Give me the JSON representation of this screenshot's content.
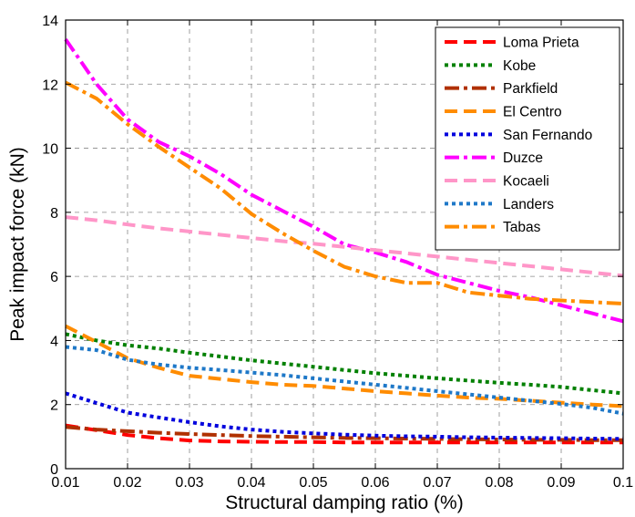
{
  "chart_data": {
    "type": "line",
    "title": "",
    "xlabel": "Structural damping ratio (%)",
    "ylabel": "Peak impact force (kN)",
    "xlim": [
      0.01,
      0.1
    ],
    "ylim": [
      0,
      14
    ],
    "xticks": [
      "0.01",
      "0.02",
      "0.03",
      "0.04",
      "0.05",
      "0.06",
      "0.07",
      "0.08",
      "0.09",
      "0.1"
    ],
    "yticks": [
      "0",
      "2",
      "4",
      "6",
      "8",
      "10",
      "12",
      "14"
    ],
    "grid": true,
    "legend_position": "top-right",
    "x": [
      0.01,
      0.015,
      0.02,
      0.025,
      0.03,
      0.035,
      0.04,
      0.045,
      0.05,
      0.055,
      0.06,
      0.065,
      0.07,
      0.075,
      0.08,
      0.085,
      0.09,
      0.095,
      0.1
    ],
    "series": [
      {
        "name": "Loma Prieta",
        "color": "#ff0000",
        "dash": "long",
        "values": [
          1.35,
          1.2,
          1.05,
          0.95,
          0.88,
          0.85,
          0.84,
          0.83,
          0.83,
          0.82,
          0.82,
          0.82,
          0.82,
          0.82,
          0.82,
          0.82,
          0.82,
          0.82,
          0.82
        ]
      },
      {
        "name": "Kobe",
        "color": "#008000",
        "dash": "dot",
        "values": [
          4.2,
          4.0,
          3.85,
          3.75,
          3.62,
          3.5,
          3.38,
          3.28,
          3.18,
          3.08,
          2.98,
          2.9,
          2.82,
          2.75,
          2.68,
          2.62,
          2.55,
          2.45,
          2.35
        ]
      },
      {
        "name": "Parkfield",
        "color": "#b03000",
        "dash": "dashdot",
        "values": [
          1.3,
          1.22,
          1.17,
          1.12,
          1.08,
          1.05,
          1.02,
          1.0,
          0.98,
          0.96,
          0.95,
          0.94,
          0.93,
          0.92,
          0.91,
          0.9,
          0.9,
          0.89,
          0.89
        ]
      },
      {
        "name": "El Centro",
        "color": "#ff8c00",
        "dash": "long",
        "values": [
          4.45,
          3.95,
          3.45,
          3.15,
          2.9,
          2.8,
          2.7,
          2.62,
          2.58,
          2.5,
          2.42,
          2.35,
          2.28,
          2.22,
          2.18,
          2.12,
          2.06,
          2.0,
          1.95
        ]
      },
      {
        "name": "San Fernando",
        "color": "#0000dd",
        "dash": "dot",
        "values": [
          2.35,
          2.05,
          1.75,
          1.6,
          1.45,
          1.32,
          1.22,
          1.15,
          1.1,
          1.06,
          1.03,
          1.01,
          1.0,
          0.98,
          0.97,
          0.96,
          0.95,
          0.94,
          0.93
        ]
      },
      {
        "name": "Duzce",
        "color": "#ff00ff",
        "dash": "dashdot",
        "values": [
          13.4,
          12.0,
          10.9,
          10.2,
          9.75,
          9.2,
          8.55,
          8.05,
          7.55,
          7.0,
          6.75,
          6.45,
          6.05,
          5.8,
          5.55,
          5.35,
          5.1,
          4.85,
          4.6
        ]
      },
      {
        "name": "Kocaeli",
        "color": "#ff96c8",
        "dash": "long",
        "values": [
          7.85,
          7.75,
          7.62,
          7.5,
          7.4,
          7.3,
          7.2,
          7.1,
          7.02,
          6.92,
          6.82,
          6.72,
          6.62,
          6.52,
          6.42,
          6.32,
          6.22,
          6.12,
          6.02
        ]
      },
      {
        "name": "Landers",
        "color": "#1e78c8",
        "dash": "dot",
        "values": [
          3.8,
          3.7,
          3.4,
          3.25,
          3.15,
          3.08,
          3.0,
          2.92,
          2.82,
          2.72,
          2.62,
          2.52,
          2.42,
          2.32,
          2.22,
          2.12,
          2.02,
          1.9,
          1.72
        ]
      },
      {
        "name": "Tabas",
        "color": "#ff8c00",
        "dash": "dashdot",
        "values": [
          12.05,
          11.55,
          10.75,
          10.05,
          9.4,
          8.75,
          7.95,
          7.35,
          6.8,
          6.3,
          6.0,
          5.8,
          5.8,
          5.5,
          5.4,
          5.3,
          5.25,
          5.2,
          5.15
        ]
      }
    ]
  }
}
